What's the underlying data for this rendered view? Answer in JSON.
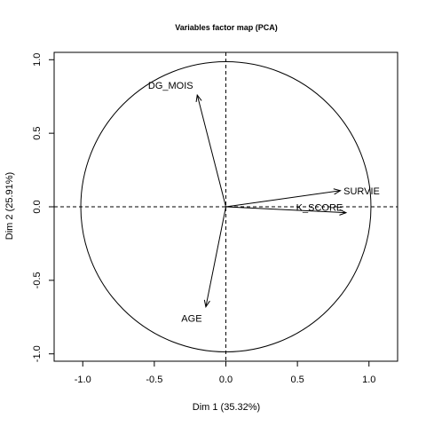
{
  "chart_data": {
    "type": "scatter",
    "subtype": "pca-correlation-circle",
    "title": "Variables factor map (PCA)",
    "xlabel": "Dim 1 (35.32%)",
    "ylabel": "Dim 2 (25.91%)",
    "xlim": [
      -1.2,
      1.2
    ],
    "ylim": [
      -1.05,
      1.05
    ],
    "xticks": [
      -1.0,
      -0.5,
      0.0,
      0.5,
      1.0
    ],
    "yticks": [
      -1.0,
      -0.5,
      0.0,
      0.5,
      1.0
    ],
    "xtick_labels": [
      "-1.0",
      "-0.5",
      "0.0",
      "0.5",
      "1.0"
    ],
    "ytick_labels": [
      "-1.0",
      "-0.5",
      "0.0",
      "0.5",
      "1.0"
    ],
    "unit_circle": true,
    "reference_lines": {
      "x": 0,
      "y": 0,
      "style": "dashed"
    },
    "grid": false,
    "variables": [
      {
        "label": "DG_MOIS",
        "x": -0.2,
        "y": 0.76
      },
      {
        "label": "SURVIE",
        "x": 0.8,
        "y": 0.11
      },
      {
        "label": "K_SCORE",
        "x": 0.84,
        "y": -0.04
      },
      {
        "label": "AGE",
        "x": -0.14,
        "y": -0.68
      }
    ]
  }
}
